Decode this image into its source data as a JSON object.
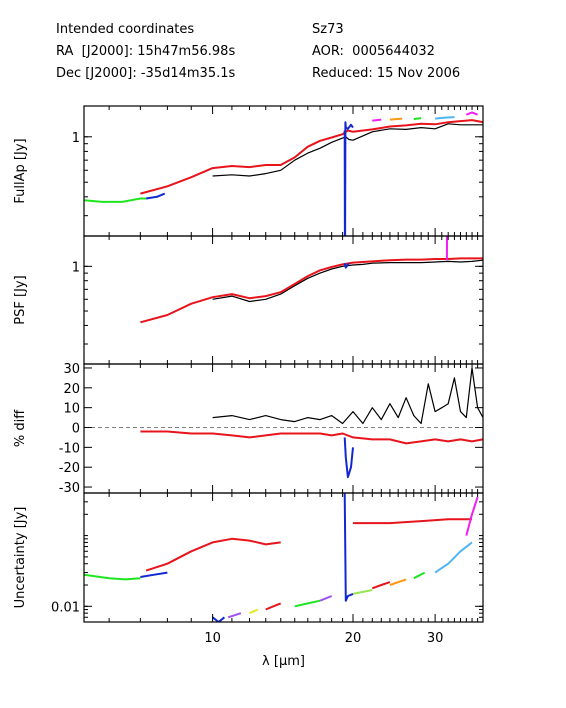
{
  "header": {
    "left": [
      "Intended coordinates",
      "RA  [J2000]: 15h47m56.98s",
      "Dec [J2000]: -35d14m35.1s"
    ],
    "right": [
      "Sz73",
      "AOR:  0005644032",
      "Reduced: 15 Nov 2006"
    ]
  },
  "colors": {
    "black": "#000000",
    "red": "#e8141c",
    "blue": "#1428d2",
    "green": "#1ee61e",
    "orange": "#ff9614",
    "yellow": "#e6e628",
    "magenta": "#f01ef0",
    "lightblue": "#50b4f5",
    "purple": "#a050f0",
    "lime": "#96e650",
    "grey": "#808080"
  },
  "chart_data": [
    {
      "type": "line",
      "ylabel": "FullAp [Jy]",
      "yscale": "log",
      "ylim": [
        0.22,
        1.6
      ],
      "xscale": "log",
      "xlim": [
        5.3,
        38.0
      ],
      "xticks": [],
      "yticks": [
        1
      ],
      "series": [
        {
          "color": "green",
          "x": [
            5.3,
            5.8,
            6.4,
            7.0,
            7.2
          ],
          "y": [
            0.38,
            0.37,
            0.37,
            0.39,
            0.39
          ]
        },
        {
          "color": "blue",
          "x": [
            7.2,
            7.6,
            7.9
          ],
          "y": [
            0.39,
            0.4,
            0.42
          ]
        },
        {
          "color": "black",
          "x": [
            10.0,
            11.0,
            12.0,
            13.0,
            14.0,
            15.0,
            16.0,
            17.0,
            18.0,
            19.0,
            19.3,
            19.6,
            20.0,
            22.0,
            24.0,
            26.0,
            28.0,
            30.0,
            32.0,
            34.0,
            36.0,
            38.0
          ],
          "y": [
            0.55,
            0.56,
            0.55,
            0.57,
            0.6,
            0.7,
            0.78,
            0.84,
            0.92,
            0.98,
            1.0,
            0.96,
            0.95,
            1.08,
            1.13,
            1.12,
            1.15,
            1.13,
            1.22,
            1.2,
            1.2,
            1.2
          ]
        },
        {
          "color": "red",
          "x": [
            7.0,
            8.0,
            9.0,
            10.0,
            11.0,
            12.0,
            13.0,
            14.0,
            15.0,
            16.0,
            17.0,
            18.0,
            19.0,
            19.5,
            20.0,
            22.0,
            24.0,
            26.0,
            28.0,
            30.0,
            32.0,
            34.0,
            36.0,
            38.0
          ],
          "y": [
            0.42,
            0.47,
            0.54,
            0.62,
            0.64,
            0.63,
            0.65,
            0.65,
            0.73,
            0.86,
            0.94,
            0.99,
            1.04,
            1.1,
            1.08,
            1.12,
            1.17,
            1.19,
            1.22,
            1.21,
            1.25,
            1.27,
            1.29,
            1.25
          ]
        },
        {
          "color": "blue",
          "x": [
            19.2,
            19.22,
            19.24,
            19.26,
            19.3,
            19.5,
            19.8,
            20.0
          ],
          "y": [
            1.1,
            0.22,
            0.22,
            1.25,
            1.15,
            1.13,
            1.2,
            1.15
          ]
        },
        {
          "color": "magenta",
          "x": [
            22.0,
            23.0
          ],
          "y": [
            1.28,
            1.3
          ]
        },
        {
          "color": "orange",
          "x": [
            24.0,
            25.5
          ],
          "y": [
            1.3,
            1.32
          ]
        },
        {
          "color": "green",
          "x": [
            27.0,
            28.0
          ],
          "y": [
            1.31,
            1.33
          ]
        },
        {
          "color": "lightblue",
          "x": [
            30.0,
            31.5,
            33.0
          ],
          "y": [
            1.32,
            1.34,
            1.35
          ]
        },
        {
          "color": "magenta",
          "x": [
            35.0,
            36.0,
            37.0
          ],
          "y": [
            1.4,
            1.45,
            1.4
          ]
        }
      ]
    },
    {
      "type": "line",
      "ylabel": "PSF [Jy]",
      "yscale": "log",
      "ylim": [
        0.22,
        1.6
      ],
      "xscale": "log",
      "xlim": [
        5.3,
        38.0
      ],
      "xticks": [],
      "yticks": [
        1
      ],
      "series": [
        {
          "color": "black",
          "x": [
            10.0,
            11.0,
            12.0,
            13.0,
            14.0,
            15.0,
            16.0,
            17.0,
            18.0,
            19.0,
            20.0,
            21.0,
            22.0,
            24.0,
            26.0,
            28.0,
            30.0,
            32.0,
            34.0,
            36.0,
            38.0
          ],
          "y": [
            0.6,
            0.63,
            0.58,
            0.6,
            0.65,
            0.74,
            0.83,
            0.9,
            0.96,
            1.0,
            1.02,
            1.03,
            1.05,
            1.06,
            1.06,
            1.06,
            1.07,
            1.08,
            1.07,
            1.08,
            1.1
          ]
        },
        {
          "color": "red",
          "x": [
            7.0,
            8.0,
            9.0,
            10.0,
            11.0,
            12.0,
            13.0,
            14.0,
            15.0,
            16.0,
            17.0,
            18.0,
            19.0,
            20.0,
            22.0,
            24.0,
            26.0,
            28.0,
            30.0,
            32.0,
            34.0,
            36.0,
            38.0
          ],
          "y": [
            0.42,
            0.47,
            0.56,
            0.62,
            0.65,
            0.61,
            0.63,
            0.67,
            0.76,
            0.86,
            0.94,
            0.99,
            1.03,
            1.06,
            1.08,
            1.1,
            1.11,
            1.11,
            1.12,
            1.12,
            1.13,
            1.13,
            1.13
          ]
        },
        {
          "color": "magenta",
          "x": [
            31.8,
            31.82
          ],
          "y": [
            1.1,
            1.6
          ]
        },
        {
          "color": "blue",
          "x": [
            19.2,
            19.3,
            19.6
          ],
          "y": [
            1.05,
            0.98,
            1.05
          ]
        }
      ]
    },
    {
      "type": "line",
      "ylabel": "% diff",
      "yscale": "linear",
      "ylim": [
        -33,
        32
      ],
      "xscale": "log",
      "xlim": [
        5.3,
        38.0
      ],
      "xticks": [],
      "yticks": [
        -30,
        -20,
        -10,
        0,
        10,
        20,
        30
      ],
      "zero_line": true,
      "series": [
        {
          "color": "black",
          "x": [
            10.0,
            11.0,
            12.0,
            13.0,
            14.0,
            15.0,
            16.0,
            17.0,
            18.0,
            19.0,
            20.0,
            21.0,
            22.0,
            23.0,
            24.0,
            25.0,
            26.0,
            27.0,
            28.0,
            29.0,
            30.0,
            31.0,
            32.0,
            33.0,
            34.0,
            35.0,
            36.0,
            37.0,
            38.0
          ],
          "y": [
            5,
            6,
            4,
            6,
            4,
            3,
            5,
            4,
            6,
            2,
            8,
            2,
            10,
            4,
            12,
            5,
            15,
            6,
            2,
            22,
            8,
            10,
            12,
            25,
            8,
            5,
            30,
            10,
            5
          ]
        },
        {
          "color": "red",
          "x": [
            7.0,
            8.0,
            9.0,
            10.0,
            11.0,
            12.0,
            13.0,
            14.0,
            15.0,
            16.0,
            17.0,
            18.0,
            19.0,
            20.0,
            22.0,
            24.0,
            26.0,
            28.0,
            30.0,
            32.0,
            34.0,
            36.0,
            38.0
          ],
          "y": [
            -2,
            -2,
            -3,
            -3,
            -4,
            -5,
            -4,
            -3,
            -3,
            -3,
            -3,
            -4,
            -3,
            -5,
            -6,
            -6,
            -8,
            -7,
            -6,
            -7,
            -6,
            -7,
            -6
          ]
        },
        {
          "color": "blue",
          "x": [
            19.2,
            19.3,
            19.5,
            19.8,
            20.0
          ],
          "y": [
            -5,
            -15,
            -25,
            -20,
            -10
          ]
        }
      ]
    },
    {
      "type": "line",
      "ylabel": "Uncertainty [Jy]",
      "yscale": "log",
      "ylim": [
        0.006,
        0.4
      ],
      "xscale": "log",
      "xlim": [
        5.3,
        38.0
      ],
      "xlabel": "λ [μm]",
      "xticks": [
        10,
        20,
        30
      ],
      "yticks": [
        0.01
      ],
      "series": [
        {
          "color": "green",
          "x": [
            5.3,
            6.0,
            6.5,
            7.0
          ],
          "y": [
            0.028,
            0.025,
            0.024,
            0.025
          ]
        },
        {
          "color": "blue",
          "x": [
            7.0,
            7.5,
            8.0
          ],
          "y": [
            0.026,
            0.028,
            0.03
          ]
        },
        {
          "color": "red",
          "x": [
            7.2,
            8.0,
            9.0,
            10.0,
            11.0,
            12.0,
            13.0,
            14.0
          ],
          "y": [
            0.032,
            0.04,
            0.06,
            0.08,
            0.09,
            0.085,
            0.075,
            0.08
          ]
        },
        {
          "color": "blue",
          "x": [
            10.0,
            10.3,
            10.6
          ],
          "y": [
            0.007,
            0.006,
            0.007
          ]
        },
        {
          "color": "purple",
          "x": [
            10.8,
            11.5
          ],
          "y": [
            0.007,
            0.008
          ]
        },
        {
          "color": "yellow",
          "x": [
            12.0,
            12.5
          ],
          "y": [
            0.008,
            0.009
          ]
        },
        {
          "color": "red",
          "x": [
            13.0,
            13.5,
            14.0
          ],
          "y": [
            0.009,
            0.01,
            0.011
          ]
        },
        {
          "color": "green",
          "x": [
            15.0,
            16.0,
            17.0
          ],
          "y": [
            0.01,
            0.011,
            0.012
          ]
        },
        {
          "color": "purple",
          "x": [
            17.0,
            18.0
          ],
          "y": [
            0.012,
            0.014
          ]
        },
        {
          "color": "blue",
          "x": [
            19.2,
            19.3,
            19.5,
            20.0
          ],
          "y": [
            0.4,
            0.012,
            0.014,
            0.015
          ]
        },
        {
          "color": "lime",
          "x": [
            20.0,
            21.0,
            22.0
          ],
          "y": [
            0.015,
            0.016,
            0.017
          ]
        },
        {
          "color": "red",
          "x": [
            22.0,
            23.0,
            24.0
          ],
          "y": [
            0.018,
            0.02,
            0.022
          ]
        },
        {
          "color": "orange",
          "x": [
            24.0,
            26.0
          ],
          "y": [
            0.02,
            0.024
          ]
        },
        {
          "color": "green",
          "x": [
            27.0,
            28.5
          ],
          "y": [
            0.025,
            0.03
          ]
        },
        {
          "color": "lightblue",
          "x": [
            30.0,
            32.0,
            34.0,
            36.0
          ],
          "y": [
            0.03,
            0.04,
            0.06,
            0.08
          ]
        },
        {
          "color": "red",
          "x": [
            20.0,
            24.0,
            28.0,
            32.0,
            36.0
          ],
          "y": [
            0.15,
            0.15,
            0.16,
            0.17,
            0.17
          ]
        },
        {
          "color": "magenta",
          "x": [
            35.0,
            36.0,
            37.0
          ],
          "y": [
            0.1,
            0.2,
            0.35
          ]
        }
      ]
    }
  ]
}
